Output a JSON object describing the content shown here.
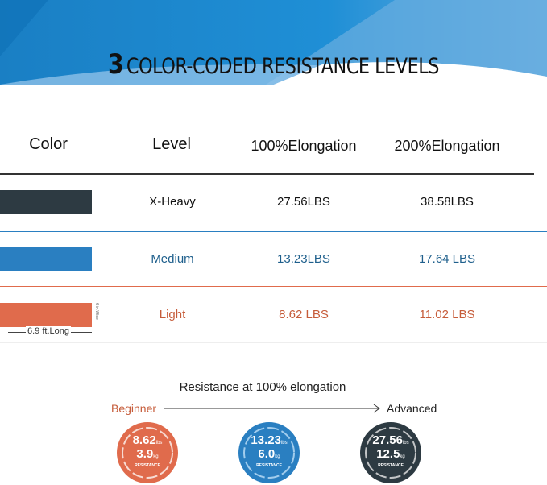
{
  "header": {
    "title_number": "3",
    "title_text": "COLOR-CODED RESISTANCE LEVELS"
  },
  "table": {
    "headers": [
      "Color",
      "Level",
      "100%Elongation",
      "200%Elongation"
    ],
    "rows": [
      {
        "level": "X-Heavy",
        "e100": "27.56LBS",
        "e200": "38.58LBS",
        "color": "#2d3a42",
        "text_color": "#111111"
      },
      {
        "level": "Medium",
        "e100": "13.23LBS",
        "e200": "17.64 LBS",
        "color": "#2a7fc1",
        "text_color": "#1e5f8c"
      },
      {
        "level": "Light",
        "e100": "8.62 LBS",
        "e200": "11.02 LBS",
        "color": "#e06b4c",
        "text_color": "#c65c3a"
      }
    ],
    "length_label": "6.9 ft.Long",
    "width_label": "6 in.Wide"
  },
  "legend": {
    "title": "Resistance at 100% elongation",
    "start": "Beginner",
    "end": "Advanced",
    "circles": [
      {
        "lbs": "8.62",
        "lbs_unit": "lbs",
        "kg": "3.9",
        "kg_unit": "kg",
        "label": "RESISTANCE",
        "color": "#e06b4c"
      },
      {
        "lbs": "13.23",
        "lbs_unit": "lbs",
        "kg": "6.0",
        "kg_unit": "kg",
        "label": "RESISTANCE",
        "color": "#2a7fc1"
      },
      {
        "lbs": "27.56",
        "lbs_unit": "lbs",
        "kg": "12.5",
        "kg_unit": "kg",
        "label": "RESISTANCE",
        "color": "#2d3a42"
      }
    ]
  }
}
